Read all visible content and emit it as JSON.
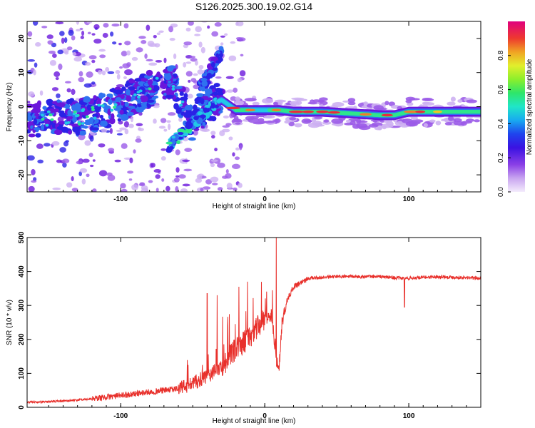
{
  "title": "S126.2025.300.19.02.G14",
  "colors": {
    "line": "#e8302b",
    "palette": [
      "#f2e6fb",
      "#cdb0f2",
      "#9b5be8",
      "#6a16dc",
      "#2a22e6",
      "#2f72f0",
      "#22c9e6",
      "#2ee68c",
      "#6ef02f",
      "#d9ef2c",
      "#f0c423",
      "#f07a2c",
      "#ea2b3c",
      "#e2007a"
    ]
  },
  "chart_data": [
    {
      "type": "heatmap",
      "title": "S126.2025.300.19.02.G14",
      "xlabel": "Height of straight line (km)",
      "ylabel": "Frequency (Hz)",
      "xlim": [
        -165,
        150
      ],
      "ylim": [
        -25,
        25
      ],
      "xticks": [
        -100,
        0,
        100
      ],
      "yticks": [
        -20,
        -10,
        0,
        10,
        20
      ],
      "colorbar": {
        "label": "Normalized spectral amplitude",
        "range": [
          0,
          1
        ],
        "ticks": [
          "0.0",
          "0.2",
          "0.4",
          "0.6",
          "0.8"
        ]
      },
      "ridge": {
        "description": "dominant frequency ridge",
        "x": [
          -165,
          -145,
          -125,
          -110,
          -95,
          -80,
          -65,
          -50,
          -40,
          -30,
          -20,
          -10,
          0,
          10,
          20,
          40,
          60,
          80,
          90,
          100,
          120,
          150
        ],
        "y": [
          -4,
          -3,
          -3,
          -1,
          2,
          5,
          8,
          -5,
          0,
          2,
          -1,
          -1,
          -1,
          -1,
          -1.5,
          -1.5,
          -2,
          -2.5,
          -2.5,
          -1.5,
          -1.5,
          -1.5
        ],
        "amplitude": [
          0.3,
          0.35,
          0.35,
          0.45,
          0.5,
          0.55,
          0.45,
          0.35,
          0.4,
          0.45,
          0.5,
          0.5,
          0.45,
          0.6,
          0.85,
          0.9,
          0.8,
          0.85,
          0.9,
          0.85,
          0.7,
          0.6
        ]
      }
    },
    {
      "type": "line",
      "xlabel": "Height of straight line (km)",
      "ylabel": "SNR (10 * v/v)",
      "xlim": [
        -165,
        150
      ],
      "ylim": [
        0,
        500
      ],
      "xticks": [
        -100,
        0,
        100
      ],
      "yticks": [
        0,
        100,
        200,
        300,
        400,
        500
      ],
      "trend": {
        "x": [
          -165,
          -140,
          -120,
          -100,
          -80,
          -60,
          -50,
          -40,
          -30,
          -20,
          -10,
          0,
          5,
          8,
          10,
          12,
          15,
          20,
          30,
          50,
          80,
          95,
          100,
          120,
          150
        ],
        "y": [
          15,
          18,
          25,
          35,
          45,
          55,
          70,
          90,
          120,
          170,
          210,
          260,
          270,
          140,
          120,
          250,
          310,
          355,
          380,
          385,
          385,
          380,
          380,
          385,
          380
        ]
      },
      "spikes": [
        {
          "x": -40,
          "y": 335
        },
        {
          "x": -33,
          "y": 330
        },
        {
          "x": -18,
          "y": 355
        },
        {
          "x": -12,
          "y": 370
        },
        {
          "x": 8,
          "y": 500
        },
        {
          "x": 10,
          "y": 108
        },
        {
          "x": 97,
          "y": 295
        }
      ]
    }
  ]
}
